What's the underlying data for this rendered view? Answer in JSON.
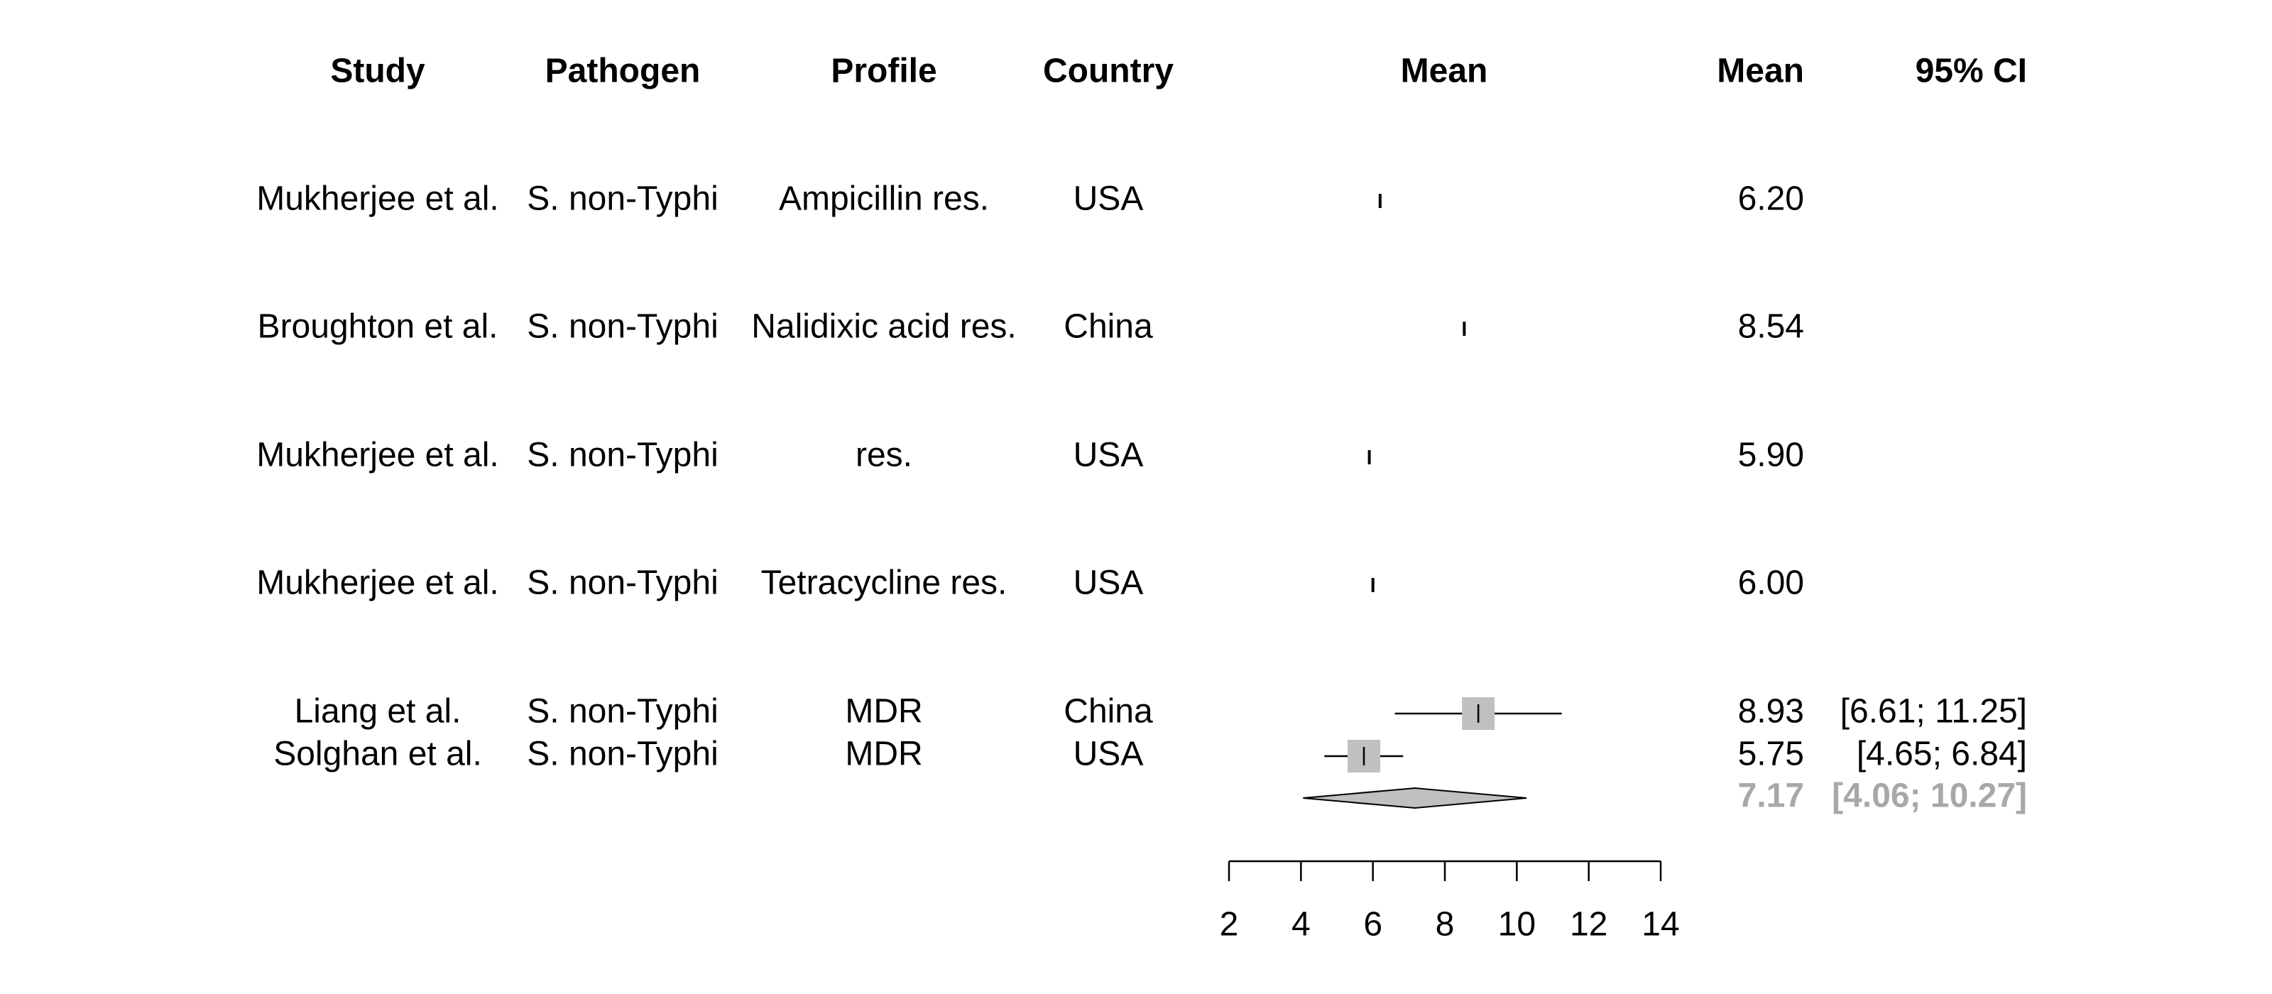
{
  "chart_data": {
    "type": "forest",
    "columns": {
      "study": "Study",
      "pathogen": "Pathogen",
      "profile": "Profile",
      "country": "Country",
      "plot": "Mean",
      "mean": "Mean",
      "ci": "95% CI"
    },
    "rows": [
      {
        "study": "Mukherjee et al.",
        "pathogen": "S. non-Typhi",
        "profile": "Ampicillin res.",
        "country": "USA",
        "mean": 6.2,
        "mean_label": "6.20",
        "ci_label": ""
      },
      {
        "study": "Broughton et al.",
        "pathogen": "S. non-Typhi",
        "profile": "Nalidixic acid res.",
        "country": "China",
        "mean": 8.54,
        "mean_label": "8.54",
        "ci_label": ""
      },
      {
        "study": "Mukherjee et al.",
        "pathogen": "S. non-Typhi",
        "profile": "res.",
        "country": "USA",
        "mean": 5.9,
        "mean_label": "5.90",
        "ci_label": ""
      },
      {
        "study": "Mukherjee et al.",
        "pathogen": "S. non-Typhi",
        "profile": "Tetracycline res.",
        "country": "USA",
        "mean": 6.0,
        "mean_label": "6.00",
        "ci_label": ""
      },
      {
        "study": "Liang et al.",
        "pathogen": "S. non-Typhi",
        "profile": "MDR",
        "country": "China",
        "mean": 8.93,
        "lower": 6.61,
        "upper": 11.25,
        "weight": 1.0,
        "mean_label": "8.93",
        "ci_label": "[6.61; 11.25]"
      },
      {
        "study": "Solghan et al.",
        "pathogen": "S. non-Typhi",
        "profile": "MDR",
        "country": "USA",
        "mean": 5.75,
        "lower": 4.65,
        "upper": 6.84,
        "weight": 1.0,
        "mean_label": "5.75",
        "ci_label": "[4.65;  6.84]"
      }
    ],
    "summary": {
      "mean": 7.17,
      "lower": 4.06,
      "upper": 10.27,
      "mean_label": "7.17",
      "ci_label": "[4.06; 10.27]"
    },
    "x_axis": {
      "range": [
        2,
        14
      ],
      "ticks": [
        2,
        4,
        6,
        8,
        10,
        12,
        14
      ],
      "tick_labels": [
        "2",
        "4",
        "6",
        "8",
        "10",
        "12",
        "14"
      ]
    },
    "colors": {
      "text": "#000000",
      "box": "#c0c0c0",
      "diamond": "#c0c0c0",
      "summary_text": "#a8a8a8",
      "line": "#000000"
    }
  }
}
